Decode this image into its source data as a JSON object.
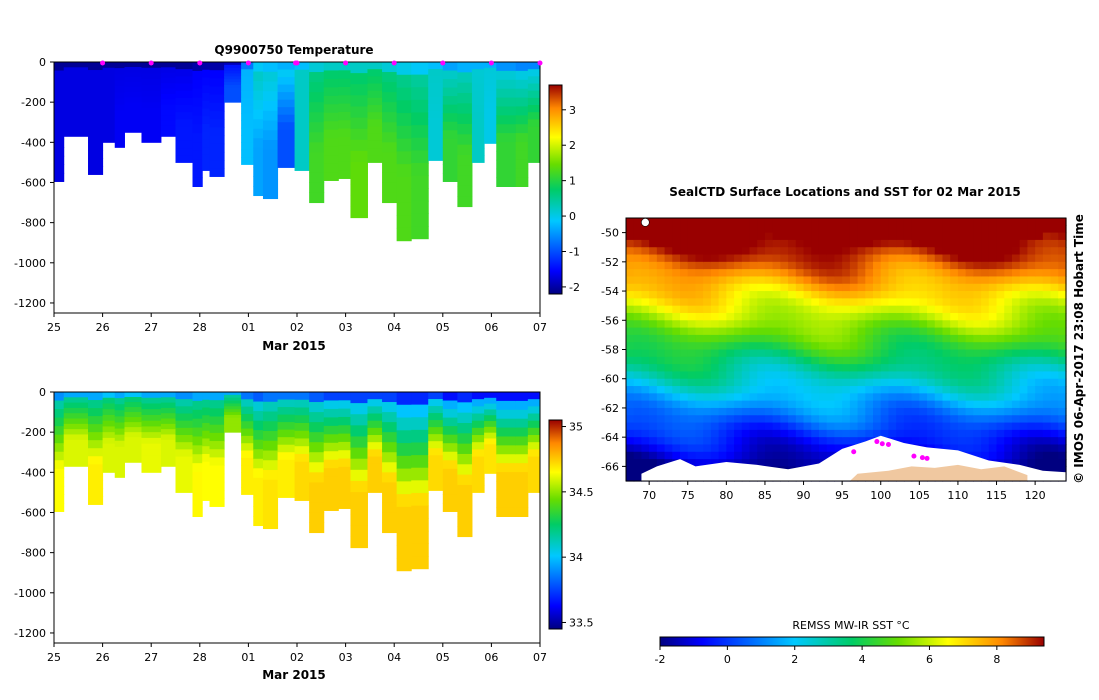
{
  "chart_data": [
    {
      "type": "heatmap",
      "id": "temperature",
      "title": "Q9900750  Temperature",
      "xlabel": "Mar 2015",
      "ylabel": "",
      "x_tick_labels": [
        "25",
        "26",
        "27",
        "28",
        "01",
        "02",
        "03",
        "04",
        "05",
        "06",
        "07"
      ],
      "y_tick_labels": [
        "0",
        "-200",
        "-400",
        "-600",
        "-800",
        "-1000",
        "-1200"
      ],
      "xlim_days": [
        0,
        10
      ],
      "ylim": [
        -1250,
        0
      ],
      "colorbar": {
        "min": -2.2,
        "max": 3.7,
        "ticks": [
          "-2",
          "-1",
          "0",
          "1",
          "2",
          "3"
        ]
      },
      "profile_markers_days": [
        1,
        2,
        3,
        4,
        4.97,
        5,
        6,
        7,
        8,
        9,
        10
      ],
      "profiles": [
        {
          "t": 0.0,
          "depth": 595,
          "surf": -1.7,
          "deep": -1.7
        },
        {
          "t": 0.2,
          "depth": 370,
          "surf": -1.7,
          "deep": -1.7
        },
        {
          "t": 0.7,
          "depth": 560,
          "surf": -1.7,
          "deep": -1.7
        },
        {
          "t": 1.0,
          "depth": 400,
          "surf": -1.7,
          "deep": -1.7
        },
        {
          "t": 1.25,
          "depth": 425,
          "surf": -1.7,
          "deep": -1.6
        },
        {
          "t": 1.45,
          "depth": 350,
          "surf": -1.7,
          "deep": -1.6
        },
        {
          "t": 1.8,
          "depth": 400,
          "surf": -1.7,
          "deep": -1.6
        },
        {
          "t": 2.2,
          "depth": 370,
          "surf": -1.7,
          "deep": -1.5
        },
        {
          "t": 2.5,
          "depth": 500,
          "surf": -1.7,
          "deep": -1.4
        },
        {
          "t": 2.85,
          "depth": 620,
          "surf": -1.6,
          "deep": -1.4
        },
        {
          "t": 3.05,
          "depth": 540,
          "surf": -1.6,
          "deep": -1.3
        },
        {
          "t": 3.2,
          "depth": 570,
          "surf": -1.6,
          "deep": -1.3
        },
        {
          "t": 3.5,
          "depth": 200,
          "surf": -1.5,
          "deep": -1.0
        },
        {
          "t": 3.85,
          "depth": 510,
          "surf": -0.3,
          "deep": -0.2
        },
        {
          "t": 4.1,
          "depth": 665,
          "surf": 0.3,
          "deep": -0.4
        },
        {
          "t": 4.3,
          "depth": 680,
          "surf": 0.2,
          "deep": -0.5
        },
        {
          "t": 4.6,
          "depth": 525,
          "surf": 0.1,
          "deep": -1.0
        },
        {
          "t": 4.95,
          "depth": 540,
          "surf": 0.2,
          "deep": 0.2
        },
        {
          "t": 5.25,
          "depth": 700,
          "surf": 0.5,
          "deep": 1.2
        },
        {
          "t": 5.55,
          "depth": 590,
          "surf": 0.6,
          "deep": 1.3
        },
        {
          "t": 5.85,
          "depth": 580,
          "surf": 0.6,
          "deep": 1.3
        },
        {
          "t": 6.1,
          "depth": 775,
          "surf": 0.6,
          "deep": 1.4
        },
        {
          "t": 6.45,
          "depth": 500,
          "surf": 0.6,
          "deep": 1.3
        },
        {
          "t": 6.75,
          "depth": 700,
          "surf": 0.5,
          "deep": 1.3
        },
        {
          "t": 7.05,
          "depth": 890,
          "surf": 0.4,
          "deep": 1.3
        },
        {
          "t": 7.35,
          "depth": 880,
          "surf": 0.3,
          "deep": 1.2
        },
        {
          "t": 7.7,
          "depth": 490,
          "surf": 0.2,
          "deep": 0.1
        },
        {
          "t": 8.0,
          "depth": 595,
          "surf": 0.0,
          "deep": 1.1
        },
        {
          "t": 8.3,
          "depth": 720,
          "surf": 0.1,
          "deep": 1.2
        },
        {
          "t": 8.6,
          "depth": 500,
          "surf": 0.1,
          "deep": 0.2
        },
        {
          "t": 8.85,
          "depth": 405,
          "surf": 0.1,
          "deep": 0.0
        },
        {
          "t": 9.1,
          "depth": 620,
          "surf": -0.1,
          "deep": 1.1
        },
        {
          "t": 9.5,
          "depth": 620,
          "surf": -0.2,
          "deep": 1.2
        },
        {
          "t": 9.75,
          "depth": 500,
          "surf": -0.2,
          "deep": 1.1
        }
      ]
    },
    {
      "type": "heatmap",
      "id": "salinity",
      "title": "",
      "xlabel": "Mar 2015",
      "ylabel": "",
      "x_tick_labels": [
        "25",
        "26",
        "27",
        "28",
        "01",
        "02",
        "03",
        "04",
        "05",
        "06",
        "07"
      ],
      "y_tick_labels": [
        "0",
        "-200",
        "-400",
        "-600",
        "-800",
        "-1000",
        "-1200"
      ],
      "xlim_days": [
        0,
        10
      ],
      "ylim": [
        -1250,
        0
      ],
      "colorbar": {
        "min": 33.45,
        "max": 35.05,
        "ticks": [
          "33.5",
          "34",
          "34.5",
          "35"
        ]
      },
      "profiles": [
        {
          "t": 0.0,
          "depth": 595,
          "surf": 34.05,
          "deep": 34.65
        },
        {
          "t": 0.2,
          "depth": 370,
          "surf": 34.1,
          "deep": 34.6
        },
        {
          "t": 0.7,
          "depth": 560,
          "surf": 34.1,
          "deep": 34.68
        },
        {
          "t": 1.0,
          "depth": 400,
          "surf": 34.15,
          "deep": 34.6
        },
        {
          "t": 1.25,
          "depth": 425,
          "surf": 34.1,
          "deep": 34.6
        },
        {
          "t": 1.45,
          "depth": 350,
          "surf": 34.15,
          "deep": 34.6
        },
        {
          "t": 1.8,
          "depth": 400,
          "surf": 34.1,
          "deep": 34.62
        },
        {
          "t": 2.2,
          "depth": 370,
          "surf": 34.1,
          "deep": 34.6
        },
        {
          "t": 2.5,
          "depth": 500,
          "surf": 34.05,
          "deep": 34.62
        },
        {
          "t": 2.85,
          "depth": 620,
          "surf": 34.1,
          "deep": 34.66
        },
        {
          "t": 3.05,
          "depth": 540,
          "surf": 34.1,
          "deep": 34.65
        },
        {
          "t": 3.2,
          "depth": 570,
          "surf": 34.1,
          "deep": 34.65
        },
        {
          "t": 3.5,
          "depth": 200,
          "surf": 34.1,
          "deep": 34.5
        },
        {
          "t": 3.85,
          "depth": 510,
          "surf": 34.0,
          "deep": 34.68
        },
        {
          "t": 4.1,
          "depth": 665,
          "surf": 33.95,
          "deep": 34.68
        },
        {
          "t": 4.3,
          "depth": 680,
          "surf": 34.0,
          "deep": 34.7
        },
        {
          "t": 4.6,
          "depth": 525,
          "surf": 34.0,
          "deep": 34.68
        },
        {
          "t": 4.95,
          "depth": 540,
          "surf": 34.0,
          "deep": 34.72
        },
        {
          "t": 5.25,
          "depth": 700,
          "surf": 33.95,
          "deep": 34.74
        },
        {
          "t": 5.55,
          "depth": 590,
          "surf": 33.9,
          "deep": 34.74
        },
        {
          "t": 5.85,
          "depth": 580,
          "surf": 33.9,
          "deep": 34.74
        },
        {
          "t": 6.1,
          "depth": 775,
          "surf": 33.9,
          "deep": 34.74
        },
        {
          "t": 6.45,
          "depth": 500,
          "surf": 33.9,
          "deep": 34.74
        },
        {
          "t": 6.75,
          "depth": 700,
          "surf": 33.9,
          "deep": 34.74
        },
        {
          "t": 7.05,
          "depth": 890,
          "surf": 33.85,
          "deep": 34.74
        },
        {
          "t": 7.35,
          "depth": 880,
          "surf": 33.85,
          "deep": 34.74
        },
        {
          "t": 7.7,
          "depth": 490,
          "surf": 33.9,
          "deep": 34.72
        },
        {
          "t": 8.0,
          "depth": 595,
          "surf": 33.8,
          "deep": 34.74
        },
        {
          "t": 8.3,
          "depth": 720,
          "surf": 33.85,
          "deep": 34.74
        },
        {
          "t": 8.6,
          "depth": 500,
          "surf": 33.8,
          "deep": 34.72
        },
        {
          "t": 8.85,
          "depth": 405,
          "surf": 33.8,
          "deep": 34.7
        },
        {
          "t": 9.1,
          "depth": 620,
          "surf": 33.8,
          "deep": 34.74
        },
        {
          "t": 9.5,
          "depth": 620,
          "surf": 33.8,
          "deep": 34.74
        },
        {
          "t": 9.75,
          "depth": 500,
          "surf": 33.8,
          "deep": 34.72
        }
      ]
    },
    {
      "type": "heatmap",
      "id": "sst-map",
      "title": "SealCTD Surface Locations and SST for 02 Mar 2015",
      "xlabel": "",
      "ylabel": "",
      "x_tick_labels": [
        "70",
        "75",
        "80",
        "85",
        "90",
        "95",
        "100",
        "105",
        "110",
        "115",
        "120"
      ],
      "y_tick_labels": [
        "-50",
        "-52",
        "-54",
        "-56",
        "-58",
        "-60",
        "-62",
        "-64",
        "-66"
      ],
      "lon_range": [
        67,
        124
      ],
      "lat_range": [
        -67,
        -49
      ],
      "colorbar": {
        "label": "REMSS MW-IR SST °C",
        "min": -2,
        "max": 9.4,
        "ticks": [
          "-2",
          "0",
          "2",
          "4",
          "6",
          "8"
        ]
      },
      "seal_locations": [
        {
          "lon": 99.5,
          "lat": -64.3
        },
        {
          "lon": 100.2,
          "lat": -64.45
        },
        {
          "lon": 101.0,
          "lat": -64.5
        },
        {
          "lon": 104.3,
          "lat": -65.3
        },
        {
          "lon": 105.4,
          "lat": -65.4
        },
        {
          "lon": 106.0,
          "lat": -65.45
        },
        {
          "lon": 96.5,
          "lat": -65.0
        }
      ]
    }
  ],
  "side_label": "© IMOS 06-Apr-2017 23:08 Hobart Time"
}
